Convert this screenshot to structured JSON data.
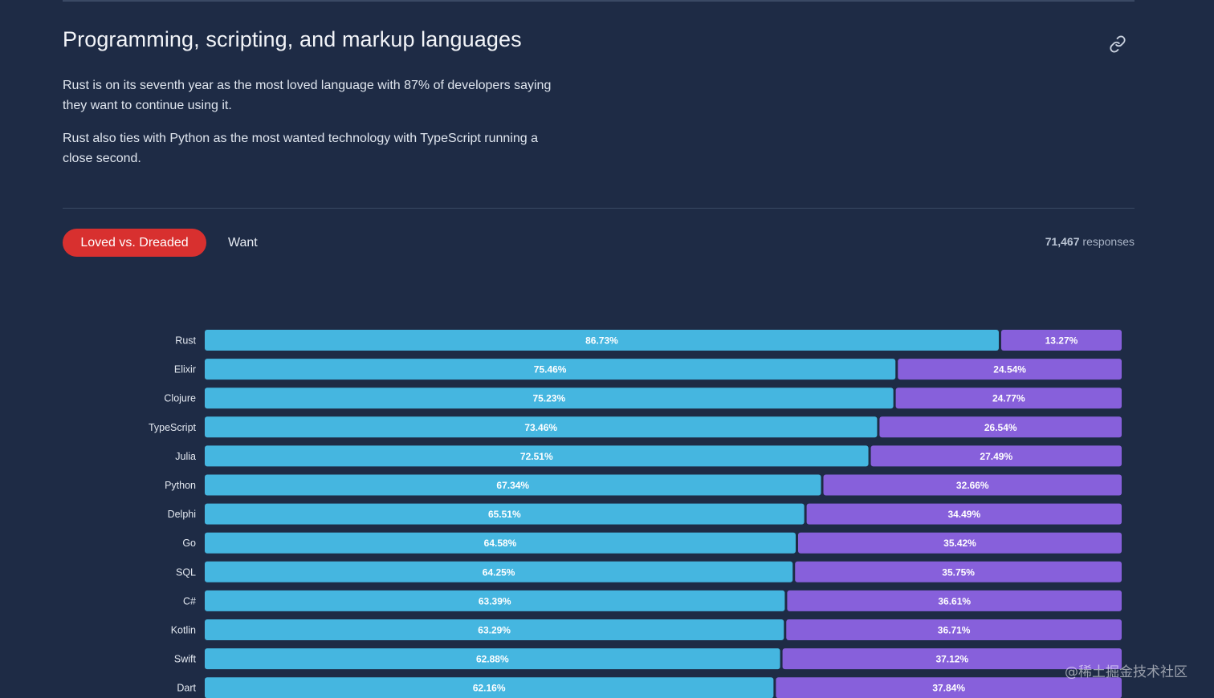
{
  "section": {
    "title": "Programming, scripting, and markup languages",
    "link_icon": "link-icon",
    "paragraphs": [
      "Rust is on its seventh year as the most loved language with 87% of developers saying they want to continue using it.",
      "Rust also ties with Python as the most wanted technology with TypeScript running a close second."
    ]
  },
  "tabs": [
    {
      "label": "Loved vs. Dreaded",
      "active": true
    },
    {
      "label": "Want",
      "active": false
    }
  ],
  "responses": {
    "count": "71,467",
    "label": "responses"
  },
  "colors": {
    "background": "#1e2b45",
    "loved": "#45b6e0",
    "dreaded": "#8760db",
    "active_tab": "#d8302f"
  },
  "chart_data": {
    "type": "bar",
    "orientation": "horizontal",
    "stacked": true,
    "xlim": [
      0,
      100
    ],
    "categories": [
      "Rust",
      "Elixir",
      "Clojure",
      "TypeScript",
      "Julia",
      "Python",
      "Delphi",
      "Go",
      "SQL",
      "C#",
      "Kotlin",
      "Swift",
      "Dart"
    ],
    "series": [
      {
        "color": "#45b6e0",
        "values": [
          86.73,
          75.46,
          75.23,
          73.46,
          72.51,
          67.34,
          65.51,
          64.58,
          64.25,
          63.39,
          63.29,
          62.88,
          62.16
        ],
        "labels": [
          "86.73%",
          "75.46%",
          "75.23%",
          "73.46%",
          "72.51%",
          "67.34%",
          "65.51%",
          "64.58%",
          "64.25%",
          "63.39%",
          "63.29%",
          "62.88%",
          "62.16%"
        ]
      },
      {
        "color": "#8760db",
        "values": [
          13.27,
          24.54,
          24.77,
          26.54,
          27.49,
          32.66,
          34.49,
          35.42,
          35.75,
          36.61,
          36.71,
          37.12,
          37.84
        ],
        "labels": [
          "13.27%",
          "24.54%",
          "24.77%",
          "26.54%",
          "27.49%",
          "32.66%",
          "34.49%",
          "35.42%",
          "35.75%",
          "36.61%",
          "36.71%",
          "37.12%",
          "37.84%"
        ]
      }
    ]
  },
  "watermark": "@稀土掘金技术社区"
}
